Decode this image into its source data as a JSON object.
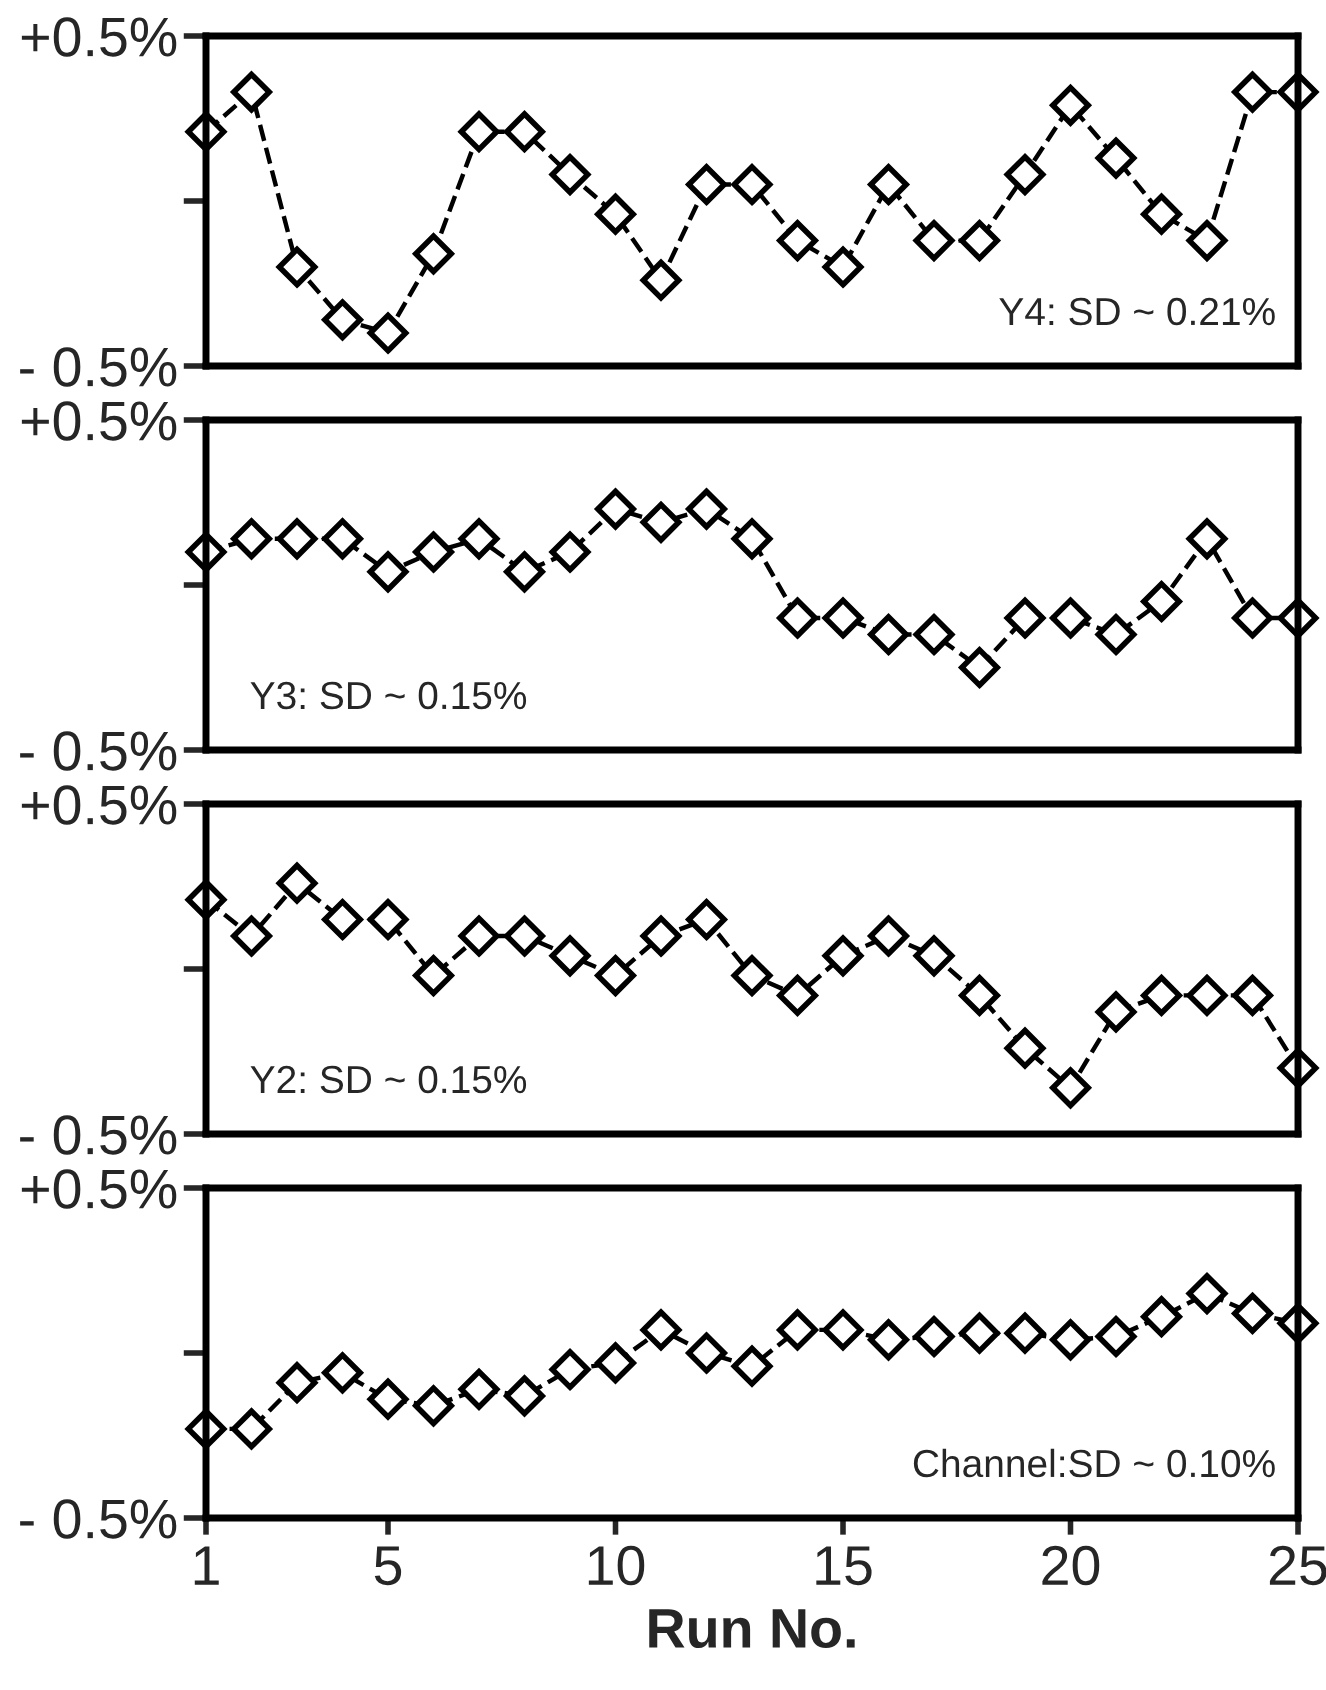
{
  "chart_data": [
    {
      "type": "line",
      "x": [
        1,
        2,
        3,
        4,
        5,
        6,
        7,
        8,
        9,
        10,
        11,
        12,
        13,
        14,
        15,
        16,
        17,
        18,
        19,
        20,
        21,
        22,
        23,
        24,
        25
      ],
      "series": [
        {
          "color": "#000000",
          "values": [
            0.21,
            0.33,
            -0.2,
            -0.36,
            -0.4,
            -0.16,
            0.21,
            0.21,
            0.08,
            -0.04,
            -0.24,
            0.05,
            0.05,
            -0.12,
            -0.2,
            0.05,
            -0.12,
            -0.12,
            0.08,
            0.29,
            0.13,
            -0.04,
            -0.12,
            0.33,
            0.33
          ]
        }
      ],
      "xlim": [
        1,
        25
      ],
      "xticks": [
        1,
        5,
        10,
        15,
        20,
        25
      ],
      "ylim": [
        -0.5,
        0.5
      ],
      "yticks": [
        {
          "value": 0.5,
          "label": "+0.5%"
        },
        {
          "value": 0,
          "label": null
        },
        {
          "value": -0.5,
          "label": "- 0.5%"
        }
      ],
      "tick_labels": "y",
      "marker": "diamond",
      "line_style": "dashed",
      "grid": false,
      "legend": false,
      "annotations": [
        "Y4: SD ~ 0.21%"
      ]
    },
    {
      "type": "line",
      "x": [
        1,
        2,
        3,
        4,
        5,
        6,
        7,
        8,
        9,
        10,
        11,
        12,
        13,
        14,
        15,
        16,
        17,
        18,
        19,
        20,
        21,
        22,
        23,
        24,
        25
      ],
      "series": [
        {
          "color": "#000000",
          "values": [
            0.1,
            0.14,
            0.14,
            0.14,
            0.04,
            0.1,
            0.14,
            0.04,
            0.1,
            0.23,
            0.19,
            0.23,
            0.14,
            -0.1,
            -0.1,
            -0.15,
            -0.15,
            -0.25,
            -0.1,
            -0.1,
            -0.15,
            -0.05,
            0.14,
            -0.1,
            -0.1
          ]
        }
      ],
      "xlim": [
        1,
        25
      ],
      "xticks": [
        1,
        5,
        10,
        15,
        20,
        25
      ],
      "ylim": [
        -0.5,
        0.5
      ],
      "yticks": [
        {
          "value": 0.5,
          "label": "+0.5%"
        },
        {
          "value": 0,
          "label": null
        },
        {
          "value": -0.5,
          "label": "- 0.5%"
        }
      ],
      "tick_labels": "y",
      "marker": "diamond",
      "line_style": "dashed",
      "grid": false,
      "legend": false,
      "annotations": [
        "Y3: SD ~ 0.15%"
      ]
    },
    {
      "type": "line",
      "x": [
        1,
        2,
        3,
        4,
        5,
        6,
        7,
        8,
        9,
        10,
        11,
        12,
        13,
        14,
        15,
        16,
        17,
        18,
        19,
        20,
        21,
        22,
        23,
        24,
        25
      ],
      "series": [
        {
          "color": "#000000",
          "values": [
            0.21,
            0.1,
            0.26,
            0.15,
            0.15,
            -0.02,
            0.1,
            0.1,
            0.04,
            -0.02,
            0.1,
            0.15,
            -0.02,
            -0.08,
            0.04,
            0.1,
            0.04,
            -0.08,
            -0.24,
            -0.36,
            -0.13,
            -0.08,
            -0.08,
            -0.08,
            -0.3
          ]
        }
      ],
      "xlim": [
        1,
        25
      ],
      "xticks": [
        1,
        5,
        10,
        15,
        20,
        25
      ],
      "ylim": [
        -0.5,
        0.5
      ],
      "yticks": [
        {
          "value": 0.5,
          "label": "+0.5%"
        },
        {
          "value": 0,
          "label": null
        },
        {
          "value": -0.5,
          "label": "- 0.5%"
        }
      ],
      "tick_labels": "y",
      "marker": "diamond",
      "line_style": "dashed",
      "grid": false,
      "legend": false,
      "annotations": [
        "Y2: SD ~ 0.15%"
      ]
    },
    {
      "type": "line",
      "x": [
        1,
        2,
        3,
        4,
        5,
        6,
        7,
        8,
        9,
        10,
        11,
        12,
        13,
        14,
        15,
        16,
        17,
        18,
        19,
        20,
        21,
        22,
        23,
        24,
        25
      ],
      "series": [
        {
          "color": "#000000",
          "values": [
            -0.23,
            -0.23,
            -0.09,
            -0.06,
            -0.14,
            -0.16,
            -0.11,
            -0.13,
            -0.05,
            -0.03,
            0.07,
            0.0,
            -0.04,
            0.07,
            0.07,
            0.04,
            0.05,
            0.06,
            0.06,
            0.04,
            0.05,
            0.11,
            0.18,
            0.12,
            0.09
          ]
        }
      ],
      "xlim": [
        1,
        25
      ],
      "xticks": [
        1,
        5,
        10,
        15,
        20,
        25
      ],
      "ylim": [
        -0.5,
        0.5
      ],
      "yticks": [
        {
          "value": 0.5,
          "label": "+0.5%"
        },
        {
          "value": 0,
          "label": null
        },
        {
          "value": -0.5,
          "label": "- 0.5%"
        }
      ],
      "marker": "diamond",
      "line_style": "dashed",
      "grid": false,
      "legend": false,
      "xlabel": "Run No.",
      "annotations": [
        "Channel:SD ~ 0.10%"
      ]
    }
  ]
}
